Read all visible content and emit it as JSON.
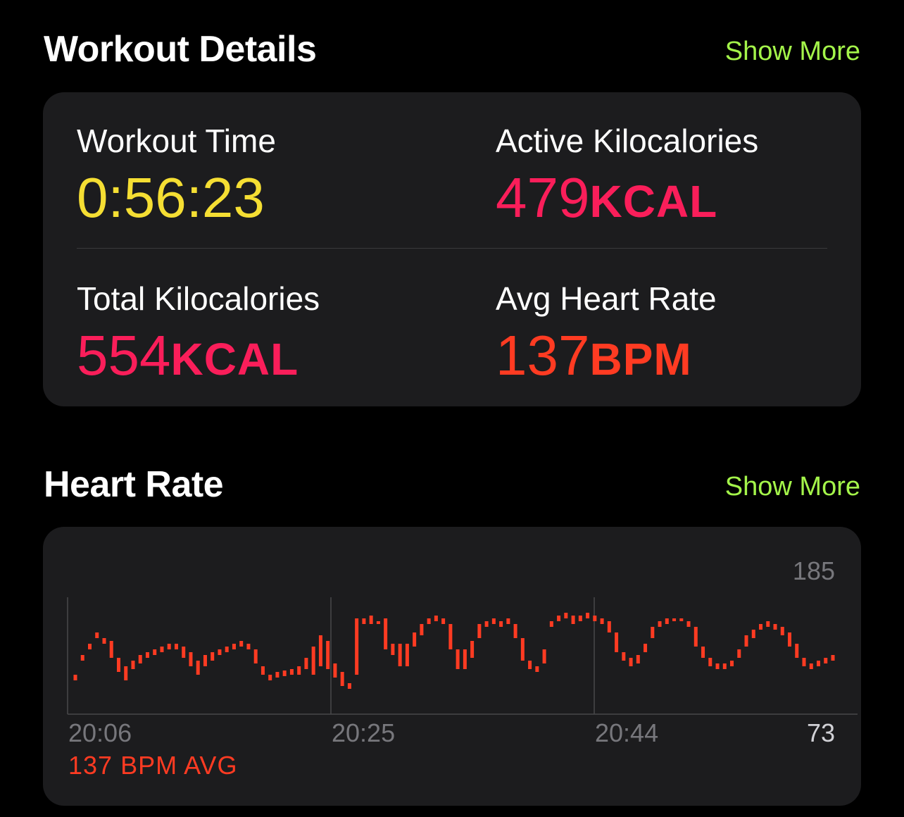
{
  "workout_details": {
    "title": "Workout Details",
    "show_more": "Show More",
    "metrics": [
      {
        "label": "Workout Time",
        "value": "0:56:23",
        "unit": "",
        "color": "#f5de33"
      },
      {
        "label": "Active Kilocalories",
        "value": "479",
        "unit": "KCAL",
        "color": "#fa1e5a"
      },
      {
        "label": "Total Kilocalories",
        "value": "554",
        "unit": "KCAL",
        "color": "#fa1e5a"
      },
      {
        "label": "Avg Heart Rate",
        "value": "137",
        "unit": "BPM",
        "color": "#ff3b22"
      }
    ]
  },
  "heart_rate": {
    "title": "Heart Rate",
    "show_more": "Show More",
    "avg_label": "137 BPM AVG",
    "color": "#ff3b22"
  },
  "chart_data": {
    "type": "bar",
    "ylim": [
      73,
      185
    ],
    "y_max_label": "185",
    "y_min_label": "73",
    "x_tick_labels": [
      "20:06",
      "20:25",
      "20:44"
    ],
    "segments": [
      [
        96,
        100
      ],
      [
        110,
        114
      ],
      [
        118,
        122
      ],
      [
        126,
        130
      ],
      [
        122,
        126
      ],
      [
        112,
        124
      ],
      [
        102,
        112
      ],
      [
        96,
        106
      ],
      [
        104,
        110
      ],
      [
        108,
        114
      ],
      [
        112,
        116
      ],
      [
        114,
        118
      ],
      [
        116,
        120
      ],
      [
        118,
        122
      ],
      [
        118,
        122
      ],
      [
        112,
        120
      ],
      [
        106,
        116
      ],
      [
        100,
        110
      ],
      [
        106,
        114
      ],
      [
        110,
        116
      ],
      [
        114,
        118
      ],
      [
        116,
        120
      ],
      [
        118,
        122
      ],
      [
        120,
        124
      ],
      [
        118,
        122
      ],
      [
        108,
        118
      ],
      [
        100,
        106
      ],
      [
        96,
        100
      ],
      [
        98,
        102
      ],
      [
        99,
        103
      ],
      [
        100,
        104
      ],
      [
        100,
        106
      ],
      [
        104,
        112
      ],
      [
        100,
        120
      ],
      [
        106,
        128
      ],
      [
        104,
        124
      ],
      [
        98,
        108
      ],
      [
        92,
        102
      ],
      [
        90,
        94
      ],
      [
        100,
        140
      ],
      [
        136,
        140
      ],
      [
        136,
        142
      ],
      [
        136,
        138
      ],
      [
        118,
        140
      ],
      [
        114,
        122
      ],
      [
        106,
        122
      ],
      [
        106,
        122
      ],
      [
        120,
        130
      ],
      [
        128,
        136
      ],
      [
        136,
        140
      ],
      [
        138,
        142
      ],
      [
        136,
        140
      ],
      [
        118,
        136
      ],
      [
        104,
        118
      ],
      [
        104,
        118
      ],
      [
        112,
        124
      ],
      [
        126,
        136
      ],
      [
        134,
        138
      ],
      [
        136,
        140
      ],
      [
        134,
        138
      ],
      [
        136,
        140
      ],
      [
        126,
        136
      ],
      [
        110,
        126
      ],
      [
        104,
        110
      ],
      [
        102,
        106
      ],
      [
        108,
        118
      ],
      [
        134,
        138
      ],
      [
        138,
        142
      ],
      [
        140,
        144
      ],
      [
        136,
        142
      ],
      [
        138,
        142
      ],
      [
        140,
        144
      ],
      [
        138,
        142
      ],
      [
        136,
        140
      ],
      [
        130,
        138
      ],
      [
        116,
        130
      ],
      [
        110,
        116
      ],
      [
        106,
        112
      ],
      [
        108,
        114
      ],
      [
        116,
        122
      ],
      [
        126,
        134
      ],
      [
        134,
        138
      ],
      [
        136,
        140
      ],
      [
        138,
        140
      ],
      [
        138,
        140
      ],
      [
        134,
        138
      ],
      [
        120,
        134
      ],
      [
        112,
        120
      ],
      [
        106,
        112
      ],
      [
        104,
        108
      ],
      [
        104,
        108
      ],
      [
        106,
        110
      ],
      [
        112,
        118
      ],
      [
        120,
        128
      ],
      [
        126,
        132
      ],
      [
        132,
        136
      ],
      [
        134,
        138
      ],
      [
        132,
        136
      ],
      [
        128,
        134
      ],
      [
        120,
        130
      ],
      [
        112,
        122
      ],
      [
        106,
        112
      ],
      [
        104,
        108
      ],
      [
        106,
        110
      ],
      [
        108,
        112
      ],
      [
        110,
        114
      ]
    ]
  }
}
